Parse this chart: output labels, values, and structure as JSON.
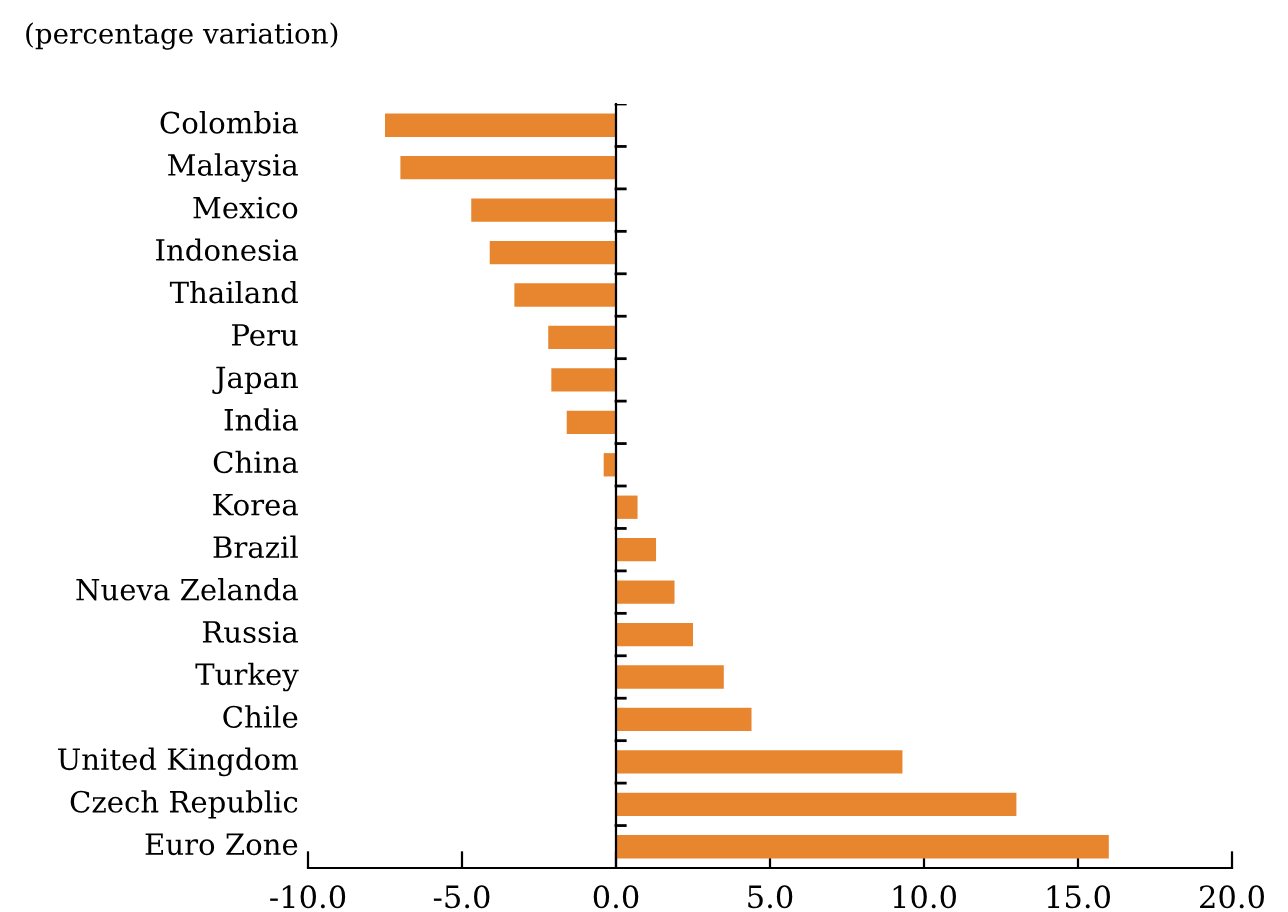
{
  "chart_data": {
    "type": "bar",
    "orientation": "horizontal",
    "title": "(percentage variation)",
    "categories": [
      "Colombia",
      "Malaysia",
      "Mexico",
      "Indonesia",
      "Thailand",
      "Peru",
      "Japan",
      "India",
      "China",
      "Korea",
      "Brazil",
      "Nueva Zelanda",
      "Russia",
      "Turkey",
      "Chile",
      "United Kingdom",
      "Czech Republic",
      "Euro Zone"
    ],
    "values": [
      -7.5,
      -7.0,
      -4.7,
      -4.1,
      -3.3,
      -2.2,
      -2.1,
      -1.6,
      -0.4,
      0.7,
      1.3,
      1.9,
      2.5,
      3.5,
      4.4,
      9.3,
      13.0,
      16.0
    ],
    "color": "#e8862f",
    "xlim": [
      -10,
      20
    ],
    "xticks": [
      {
        "value": -10,
        "label": "-10.0"
      },
      {
        "value": -5,
        "label": "-5.0"
      },
      {
        "value": 0,
        "label": "0.0"
      },
      {
        "value": 5,
        "label": "5.0"
      },
      {
        "value": 10,
        "label": "10.0"
      },
      {
        "value": 15,
        "label": "15.0"
      },
      {
        "value": 20,
        "label": "20.0"
      }
    ],
    "legend": false
  }
}
